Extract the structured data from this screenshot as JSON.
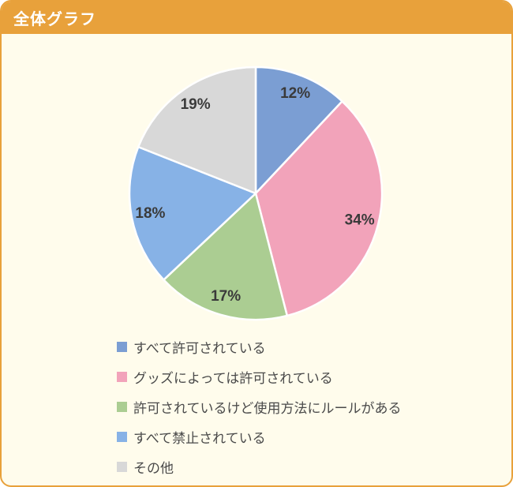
{
  "header": {
    "title": "全体グラフ"
  },
  "colors": {
    "accent": "#E8A13B",
    "card_background": "#FFFCEC",
    "slice_separator": "#FFFFFF",
    "percent_label": "#3A3A3A",
    "legend_text": "#4A4A4A"
  },
  "chart_data": {
    "type": "pie",
    "title": "全体グラフ",
    "start_angle_deg": 0,
    "direction": "clockwise",
    "legend_position": "bottom-left",
    "slices": [
      {
        "label": "すべて許可されている",
        "value": 12,
        "pct_label": "12%",
        "color": "#7B9ED3"
      },
      {
        "label": "グッズによっては許可されている",
        "value": 34,
        "pct_label": "34%",
        "color": "#F2A3BA"
      },
      {
        "label": "許可されているけど使用方法にルールがある",
        "value": 17,
        "pct_label": "17%",
        "color": "#ABCD92"
      },
      {
        "label": "すべて禁止されている",
        "value": 18,
        "pct_label": "18%",
        "color": "#87B2E6"
      },
      {
        "label": "その他",
        "value": 19,
        "pct_label": "19%",
        "color": "#D8D8D8"
      }
    ]
  }
}
